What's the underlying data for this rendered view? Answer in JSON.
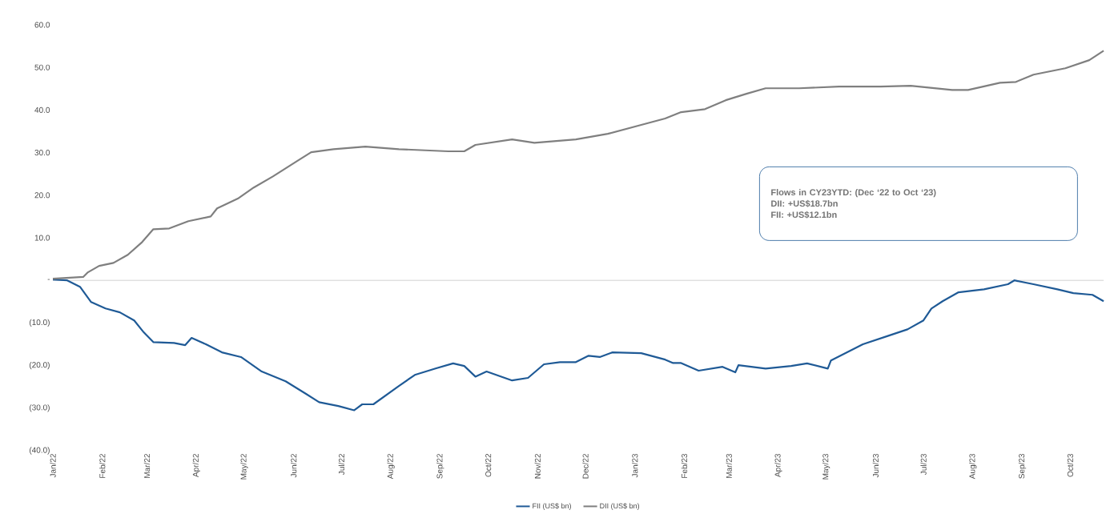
{
  "chart_data": {
    "type": "line",
    "xlim": [
      "2022-01-01",
      "2023-10-22"
    ],
    "xticks": [
      {
        "value": "2022-01-01",
        "label": "Jan/22"
      },
      {
        "value": "2022-02-01",
        "label": "Feb/22"
      },
      {
        "value": "2022-03-01",
        "label": "Mar/22"
      },
      {
        "value": "2022-04-01",
        "label": "Apr/22"
      },
      {
        "value": "2022-05-01",
        "label": "May/22"
      },
      {
        "value": "2022-06-01",
        "label": "Jun/22"
      },
      {
        "value": "2022-07-01",
        "label": "Jul/22"
      },
      {
        "value": "2022-08-01",
        "label": "Aug/22"
      },
      {
        "value": "2022-09-01",
        "label": "Sep/22"
      },
      {
        "value": "2022-10-01",
        "label": "Oct/22"
      },
      {
        "value": "2022-11-01",
        "label": "Nov/22"
      },
      {
        "value": "2022-12-01",
        "label": "Dec/22"
      },
      {
        "value": "2023-01-01",
        "label": "Jan/23"
      },
      {
        "value": "2023-02-01",
        "label": "Feb/23"
      },
      {
        "value": "2023-03-01",
        "label": "Mar/23"
      },
      {
        "value": "2023-04-01",
        "label": "Apr/23"
      },
      {
        "value": "2023-05-01",
        "label": "May/23"
      },
      {
        "value": "2023-06-01",
        "label": "Jun/23"
      },
      {
        "value": "2023-07-01",
        "label": "Jul/23"
      },
      {
        "value": "2023-08-01",
        "label": "Aug/23"
      },
      {
        "value": "2023-09-01",
        "label": "Sep/23"
      },
      {
        "value": "2023-10-01",
        "label": "Oct/23"
      }
    ],
    "ylim": [
      -40,
      60
    ],
    "yticks": [
      {
        "value": -40,
        "label": "(40.0)"
      },
      {
        "value": -30,
        "label": "(30.0)"
      },
      {
        "value": -20,
        "label": "(20.0)"
      },
      {
        "value": -10,
        "label": "(10.0)"
      },
      {
        "value": 0,
        "label": "-"
      },
      {
        "value": 10,
        "label": "10.0"
      },
      {
        "value": 20,
        "label": "20.0"
      },
      {
        "value": 30,
        "label": "30.0"
      },
      {
        "value": 40,
        "label": "40.0"
      },
      {
        "value": 50,
        "label": "50.0"
      },
      {
        "value": 60,
        "label": "60.0"
      }
    ],
    "series": [
      {
        "name": "FII (US$ bn)",
        "color": "#1f5a96",
        "x": [
          "2022-01-01",
          "2022-01-10",
          "2022-01-18",
          "2022-01-25",
          "2022-02-03",
          "2022-02-12",
          "2022-02-21",
          "2022-02-27",
          "2022-03-05",
          "2022-03-18",
          "2022-03-25",
          "2022-03-29",
          "2022-04-07",
          "2022-04-17",
          "2022-04-29",
          "2022-05-12",
          "2022-05-27",
          "2022-06-09",
          "2022-06-17",
          "2022-06-29",
          "2022-07-09",
          "2022-07-14",
          "2022-07-21",
          "2022-08-06",
          "2022-08-16",
          "2022-08-29",
          "2022-09-09",
          "2022-09-16",
          "2022-09-23",
          "2022-09-30",
          "2022-10-16",
          "2022-10-26",
          "2022-11-05",
          "2022-11-15",
          "2022-11-25",
          "2022-12-03",
          "2022-12-10",
          "2022-12-18",
          "2023-01-05",
          "2023-01-20",
          "2023-01-25",
          "2023-01-30",
          "2023-02-10",
          "2023-02-25",
          "2023-03-05",
          "2023-03-07",
          "2023-03-24",
          "2023-04-09",
          "2023-04-19",
          "2023-05-02",
          "2023-05-04",
          "2023-05-24",
          "2023-06-09",
          "2023-06-21",
          "2023-07-01",
          "2023-07-06",
          "2023-07-13",
          "2023-07-23",
          "2023-08-08",
          "2023-08-23",
          "2023-08-27",
          "2023-09-08",
          "2023-09-23",
          "2023-10-03",
          "2023-10-15",
          "2023-10-22"
        ],
        "values": [
          0.2,
          0,
          -1.5,
          -5.1,
          -6.6,
          -7.5,
          -9.4,
          -12.2,
          -14.5,
          -14.7,
          -15.2,
          -13.5,
          -15.0,
          -16.9,
          -18.0,
          -21.4,
          -23.7,
          -26.7,
          -28.6,
          -29.5,
          -30.5,
          -29.1,
          -29.1,
          -24.8,
          -22.2,
          -20.7,
          -19.5,
          -20.1,
          -22.6,
          -21.4,
          -23.5,
          -22.9,
          -19.7,
          -19.2,
          -19.2,
          -17.7,
          -18.0,
          -16.9,
          -17.1,
          -18.6,
          -19.4,
          -19.4,
          -21.2,
          -20.3,
          -21.6,
          -19.9,
          -20.7,
          -20.1,
          -19.5,
          -20.7,
          -18.8,
          -15.0,
          -13.0,
          -11.5,
          -9.4,
          -6.6,
          -4.9,
          -2.8,
          -2.1,
          -0.9,
          0.0,
          -0.9,
          -2.1,
          -3.0,
          -3.4,
          -4.9
        ]
      },
      {
        "name": "DII (US$ bn)",
        "color": "#7f7f7f",
        "x": [
          "2022-01-01",
          "2022-01-20",
          "2022-01-23",
          "2022-01-30",
          "2022-02-08",
          "2022-02-17",
          "2022-02-26",
          "2022-03-05",
          "2022-03-15",
          "2022-03-27",
          "2022-04-10",
          "2022-04-14",
          "2022-04-27",
          "2022-05-07",
          "2022-05-19",
          "2022-06-04",
          "2022-06-12",
          "2022-06-26",
          "2022-07-16",
          "2022-08-06",
          "2022-09-06",
          "2022-09-16",
          "2022-09-23",
          "2022-10-16",
          "2022-10-30",
          "2022-11-25",
          "2022-12-15",
          "2023-01-05",
          "2023-01-20",
          "2023-01-30",
          "2023-02-14",
          "2023-02-27",
          "2023-03-12",
          "2023-03-24",
          "2023-04-14",
          "2023-05-09",
          "2023-06-04",
          "2023-06-23",
          "2023-07-19",
          "2023-07-29",
          "2023-08-18",
          "2023-08-28",
          "2023-09-08",
          "2023-09-28",
          "2023-10-13",
          "2023-10-22"
        ],
        "values": [
          0.4,
          0.8,
          1.9,
          3.4,
          4.1,
          6.0,
          9.0,
          12.0,
          12.2,
          13.9,
          15.0,
          16.9,
          19.2,
          21.8,
          24.4,
          28.2,
          30.1,
          30.8,
          31.4,
          30.8,
          30.3,
          30.3,
          31.8,
          33.1,
          32.3,
          33.1,
          34.4,
          36.5,
          38.0,
          39.5,
          40.2,
          42.3,
          43.8,
          45.1,
          45.1,
          45.5,
          45.5,
          45.7,
          44.7,
          44.7,
          46.4,
          46.6,
          48.3,
          49.8,
          51.7,
          53.9
        ]
      }
    ],
    "ref_lines": [
      {
        "axis": "y",
        "value": 0,
        "color": "#c8c8c8"
      }
    ],
    "annotations": [
      "Flows in CY23YTD: (Dec ‘22 to Oct ‘23)",
      "DII: +US$18.7bn",
      "FII: +US$12.1bn"
    ],
    "legend": "bottom",
    "grid": false,
    "line_style": "solid",
    "marker": "none"
  }
}
